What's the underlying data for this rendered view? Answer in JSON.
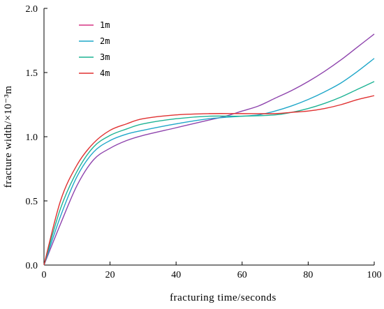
{
  "chart_data": {
    "type": "line",
    "title": "",
    "xlabel": "fracturing time/seconds",
    "ylabel": "fracture width/×10⁻³m",
    "xlim": [
      0,
      100
    ],
    "ylim": [
      0,
      2.0
    ],
    "x_ticks": [
      0,
      20,
      40,
      60,
      80,
      100
    ],
    "y_ticks": [
      0.0,
      0.5,
      1.0,
      1.5,
      2.0
    ],
    "x_tick_labels": [
      "0",
      "20",
      "40",
      "60",
      "80",
      "100"
    ],
    "y_tick_labels": [
      "0.0",
      "0.5",
      "1.0",
      "1.5",
      "2.0"
    ],
    "grid": false,
    "legend_position": "top-left",
    "series": [
      {
        "name": "1m",
        "color": "#8e44ad",
        "legend_color": "#d63384",
        "points": [
          [
            0,
            0
          ],
          [
            5,
            0.32
          ],
          [
            10,
            0.62
          ],
          [
            15,
            0.82
          ],
          [
            20,
            0.91
          ],
          [
            25,
            0.97
          ],
          [
            30,
            1.01
          ],
          [
            40,
            1.07
          ],
          [
            50,
            1.13
          ],
          [
            55,
            1.16
          ],
          [
            60,
            1.2
          ],
          [
            65,
            1.24
          ],
          [
            70,
            1.3
          ],
          [
            75,
            1.36
          ],
          [
            80,
            1.43
          ],
          [
            85,
            1.51
          ],
          [
            90,
            1.6
          ],
          [
            95,
            1.7
          ],
          [
            100,
            1.8
          ]
        ]
      },
      {
        "name": "2m",
        "color": "#1fa7c9",
        "legend_color": "#1fa7c9",
        "points": [
          [
            0,
            0
          ],
          [
            5,
            0.38
          ],
          [
            10,
            0.69
          ],
          [
            15,
            0.88
          ],
          [
            20,
            0.97
          ],
          [
            25,
            1.02
          ],
          [
            30,
            1.05
          ],
          [
            40,
            1.1
          ],
          [
            50,
            1.14
          ],
          [
            60,
            1.16
          ],
          [
            65,
            1.17
          ],
          [
            70,
            1.2
          ],
          [
            75,
            1.24
          ],
          [
            80,
            1.29
          ],
          [
            85,
            1.35
          ],
          [
            90,
            1.42
          ],
          [
            95,
            1.51
          ],
          [
            100,
            1.61
          ]
        ]
      },
      {
        "name": "3m",
        "color": "#1db394",
        "legend_color": "#1db394",
        "points": [
          [
            0,
            0
          ],
          [
            5,
            0.44
          ],
          [
            10,
            0.73
          ],
          [
            15,
            0.92
          ],
          [
            20,
            1.01
          ],
          [
            25,
            1.06
          ],
          [
            30,
            1.1
          ],
          [
            40,
            1.14
          ],
          [
            50,
            1.16
          ],
          [
            60,
            1.16
          ],
          [
            70,
            1.17
          ],
          [
            75,
            1.19
          ],
          [
            80,
            1.22
          ],
          [
            85,
            1.26
          ],
          [
            90,
            1.31
          ],
          [
            95,
            1.37
          ],
          [
            100,
            1.43
          ]
        ]
      },
      {
        "name": "4m",
        "color": "#e03131",
        "legend_color": "#e03131",
        "points": [
          [
            0,
            0
          ],
          [
            5,
            0.5
          ],
          [
            10,
            0.78
          ],
          [
            15,
            0.95
          ],
          [
            20,
            1.05
          ],
          [
            25,
            1.1
          ],
          [
            30,
            1.14
          ],
          [
            40,
            1.17
          ],
          [
            50,
            1.18
          ],
          [
            60,
            1.18
          ],
          [
            70,
            1.18
          ],
          [
            75,
            1.19
          ],
          [
            80,
            1.2
          ],
          [
            85,
            1.22
          ],
          [
            90,
            1.25
          ],
          [
            95,
            1.29
          ],
          [
            100,
            1.32
          ]
        ]
      }
    ]
  }
}
